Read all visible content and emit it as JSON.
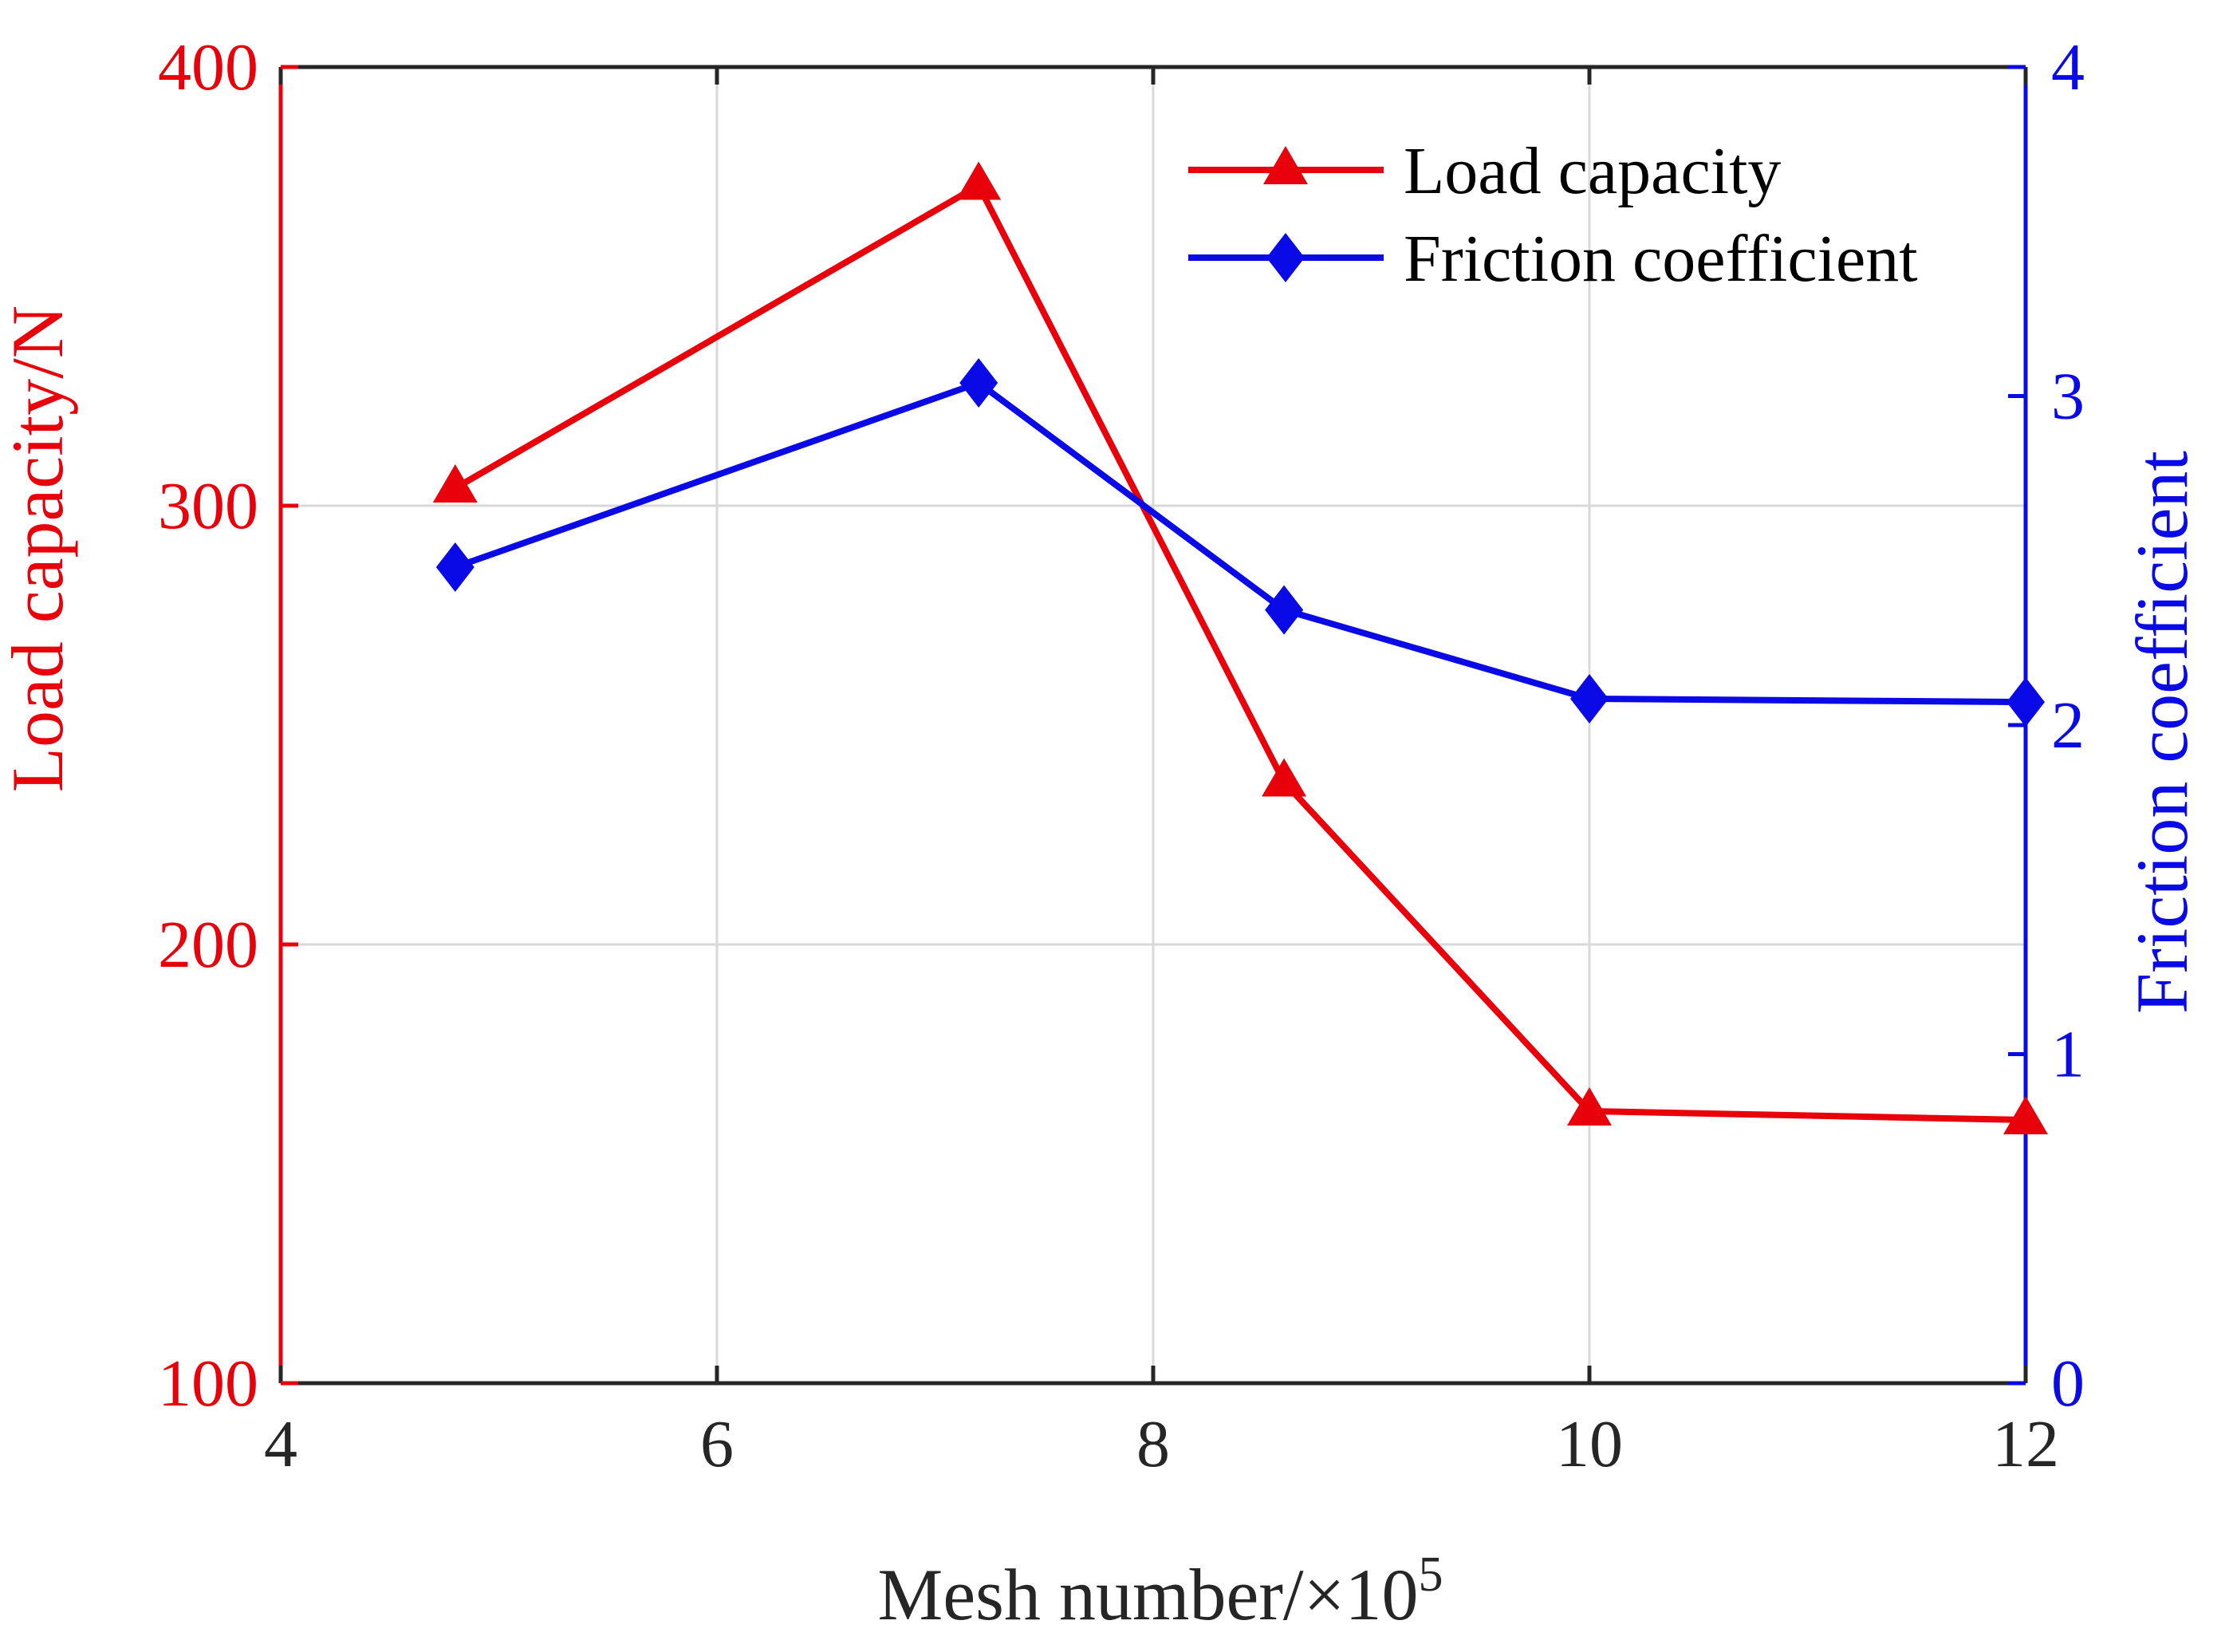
{
  "chart_data": {
    "type": "line",
    "x": [
      4.8,
      7.2,
      8.6,
      10,
      12
    ],
    "xlabel_main": "Mesh number/×10",
    "xlabel_sup": "5",
    "xlim": [
      4,
      12
    ],
    "xticks": [
      "4",
      "6",
      "8",
      "10",
      "12"
    ],
    "xtick_values": [
      4,
      6,
      8,
      10,
      12
    ],
    "grid": true,
    "legend_position": "top-right",
    "series": [
      {
        "name": "Load capacity",
        "axis": "left",
        "marker": "triangle",
        "color": "#e8000b",
        "values": [
          304,
          373,
          237,
          162,
          160
        ]
      },
      {
        "name": "Friction coefficient",
        "axis": "right",
        "marker": "diamond",
        "color": "#0a0ae6",
        "values": [
          2.48,
          3.04,
          2.35,
          2.08,
          2.07
        ]
      }
    ],
    "y_left": {
      "label": "Load capacity/N",
      "lim": [
        100,
        400
      ],
      "ticks": [
        "100",
        "200",
        "300",
        "400"
      ],
      "tick_values": [
        100,
        200,
        300,
        400
      ],
      "color": "#e8000b"
    },
    "y_right": {
      "label": "Friction coefficient",
      "lim": [
        0,
        4
      ],
      "ticks": [
        "0",
        "1",
        "2",
        "3",
        "4"
      ],
      "tick_values": [
        0,
        1,
        2,
        3,
        4
      ],
      "color": "#0a0ae6"
    }
  }
}
